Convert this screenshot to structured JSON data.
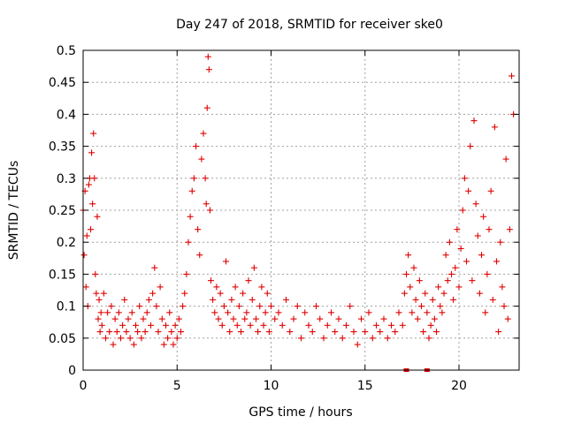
{
  "chart_data": {
    "type": "scatter",
    "title": "Day 247 of 2018, SRMTID for receiver ske0",
    "xlabel": "GPS time / hours",
    "ylabel": "SRMTID / TECUs",
    "xlim": [
      0,
      23.2
    ],
    "ylim": [
      0,
      0.5
    ],
    "xticks": [
      "0",
      "5",
      "10",
      "15",
      "20"
    ],
    "xtick_values": [
      0,
      5,
      10,
      15,
      20
    ],
    "yticks": [
      "0",
      "0.05",
      "0.1",
      "0.15",
      "0.2",
      "0.25",
      "0.3",
      "0.35",
      "0.4",
      "0.45",
      "0.5"
    ],
    "ytick_values": [
      0,
      0.05,
      0.1,
      0.15,
      0.2,
      0.25,
      0.3,
      0.35,
      0.4,
      0.45,
      0.5
    ],
    "grid": true,
    "marker": "+",
    "color": "#e00000",
    "series": [
      {
        "name": "SRMTID",
        "x": [
          0.0,
          0.05,
          0.1,
          0.15,
          0.2,
          0.25,
          0.3,
          0.35,
          0.4,
          0.45,
          0.5,
          0.55,
          0.6,
          0.65,
          0.7,
          0.75,
          0.8,
          0.85,
          0.9,
          0.95,
          1.0,
          1.1,
          1.2,
          1.3,
          1.4,
          1.5,
          1.6,
          1.7,
          1.8,
          1.9,
          2.0,
          2.1,
          2.2,
          2.3,
          2.4,
          2.5,
          2.6,
          2.7,
          2.8,
          2.9,
          3.0,
          3.1,
          3.2,
          3.3,
          3.4,
          3.5,
          3.6,
          3.7,
          3.8,
          3.9,
          4.0,
          4.1,
          4.2,
          4.3,
          4.4,
          4.5,
          4.6,
          4.7,
          4.8,
          4.9,
          5.0,
          5.1,
          5.2,
          5.3,
          5.4,
          5.5,
          5.6,
          5.7,
          5.8,
          5.9,
          6.0,
          6.1,
          6.2,
          6.3,
          6.4,
          6.5,
          6.55,
          6.6,
          6.65,
          6.7,
          6.75,
          6.8,
          6.9,
          7.0,
          7.1,
          7.2,
          7.3,
          7.4,
          7.5,
          7.6,
          7.7,
          7.8,
          7.9,
          8.0,
          8.1,
          8.2,
          8.3,
          8.4,
          8.5,
          8.6,
          8.7,
          8.8,
          8.9,
          9.0,
          9.1,
          9.2,
          9.3,
          9.4,
          9.5,
          9.6,
          9.7,
          9.8,
          9.9,
          10.0,
          10.2,
          10.4,
          10.6,
          10.8,
          11.0,
          11.2,
          11.4,
          11.6,
          11.8,
          12.0,
          12.2,
          12.4,
          12.6,
          12.8,
          13.0,
          13.2,
          13.4,
          13.6,
          13.8,
          14.0,
          14.2,
          14.4,
          14.6,
          14.8,
          15.0,
          15.2,
          15.4,
          15.6,
          15.8,
          16.0,
          16.2,
          16.4,
          16.6,
          16.8,
          17.0,
          17.1,
          17.2,
          17.3,
          17.4,
          17.5,
          17.6,
          17.7,
          17.8,
          17.9,
          18.0,
          18.1,
          18.2,
          18.3,
          18.4,
          18.5,
          18.6,
          18.7,
          18.8,
          18.9,
          19.0,
          19.1,
          19.2,
          19.3,
          19.4,
          19.5,
          19.6,
          19.7,
          19.8,
          19.9,
          20.0,
          20.1,
          20.2,
          20.3,
          20.4,
          20.5,
          20.6,
          20.7,
          20.8,
          20.9,
          21.0,
          21.1,
          21.2,
          21.3,
          21.4,
          21.5,
          21.6,
          21.7,
          21.8,
          21.9,
          22.0,
          22.1,
          22.2,
          22.3,
          22.4,
          22.5,
          22.6,
          22.7,
          22.8,
          22.9
        ],
        "y": [
          0.25,
          0.18,
          0.28,
          0.13,
          0.21,
          0.1,
          0.29,
          0.3,
          0.22,
          0.34,
          0.26,
          0.37,
          0.3,
          0.15,
          0.12,
          0.24,
          0.08,
          0.11,
          0.06,
          0.09,
          0.07,
          0.12,
          0.05,
          0.09,
          0.06,
          0.1,
          0.04,
          0.08,
          0.06,
          0.09,
          0.05,
          0.07,
          0.11,
          0.06,
          0.08,
          0.05,
          0.09,
          0.04,
          0.07,
          0.06,
          0.1,
          0.05,
          0.08,
          0.06,
          0.09,
          0.11,
          0.07,
          0.12,
          0.16,
          0.1,
          0.06,
          0.13,
          0.08,
          0.04,
          0.07,
          0.05,
          0.09,
          0.06,
          0.04,
          0.07,
          0.05,
          0.08,
          0.06,
          0.1,
          0.12,
          0.15,
          0.2,
          0.24,
          0.28,
          0.3,
          0.35,
          0.22,
          0.18,
          0.33,
          0.37,
          0.3,
          0.26,
          0.41,
          0.49,
          0.47,
          0.25,
          0.14,
          0.11,
          0.09,
          0.13,
          0.08,
          0.12,
          0.07,
          0.1,
          0.17,
          0.09,
          0.06,
          0.11,
          0.08,
          0.13,
          0.07,
          0.1,
          0.06,
          0.12,
          0.08,
          0.09,
          0.14,
          0.07,
          0.11,
          0.16,
          0.08,
          0.06,
          0.1,
          0.13,
          0.07,
          0.09,
          0.12,
          0.06,
          0.1,
          0.08,
          0.09,
          0.07,
          0.11,
          0.06,
          0.08,
          0.1,
          0.05,
          0.09,
          0.07,
          0.06,
          0.1,
          0.08,
          0.05,
          0.07,
          0.09,
          0.06,
          0.08,
          0.05,
          0.07,
          0.1,
          0.06,
          0.04,
          0.08,
          0.06,
          0.09,
          0.05,
          0.07,
          0.06,
          0.08,
          0.05,
          0.07,
          0.06,
          0.09,
          0.07,
          0.12,
          0.15,
          0.18,
          0.13,
          0.09,
          0.16,
          0.11,
          0.08,
          0.14,
          0.1,
          0.06,
          0.12,
          0.09,
          0.05,
          0.07,
          0.11,
          0.08,
          0.06,
          0.13,
          0.1,
          0.09,
          0.12,
          0.18,
          0.14,
          0.2,
          0.15,
          0.11,
          0.16,
          0.22,
          0.13,
          0.19,
          0.25,
          0.3,
          0.17,
          0.28,
          0.35,
          0.14,
          0.39,
          0.26,
          0.21,
          0.12,
          0.18,
          0.24,
          0.09,
          0.15,
          0.22,
          0.28,
          0.11,
          0.38,
          0.17,
          0.06,
          0.2,
          0.13,
          0.1,
          0.33,
          0.08,
          0.22,
          0.46,
          0.4
        ],
        "zero_markers_x": [
          17.2,
          18.3
        ]
      }
    ]
  }
}
